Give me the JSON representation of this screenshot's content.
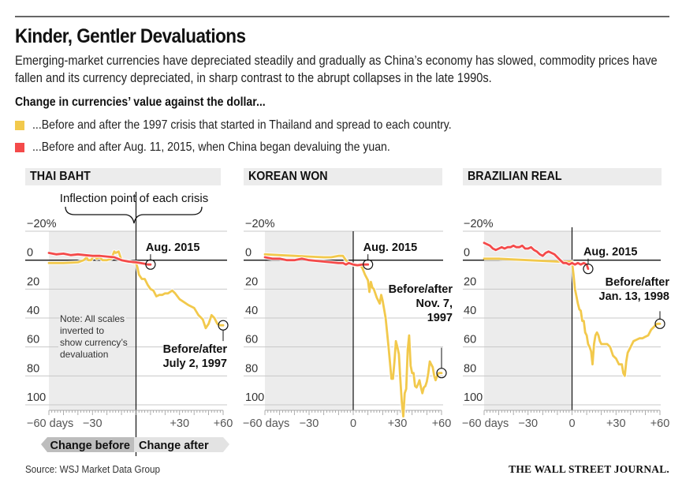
{
  "header": {
    "title": "Kinder, Gentler Devaluations",
    "subtitle": "Emerging-market currencies have depreciated steadily and gradually as China’s economy has slowed, commodity prices have fallen and its currency depreciated, in sharp contrast to the abrupt collapses in the late 1990s.",
    "lead": "Change in currencies’ value against the dollar..."
  },
  "legend": [
    {
      "label": "...Before and after the 1997 crisis that started in Thailand and spread to each country.",
      "color": "#f2c94c"
    },
    {
      "label": "...Before and after Aug. 11, 2015, when China began devaluing the yuan.",
      "color": "#f44a4a"
    }
  ],
  "colors": {
    "series_1997": "#f2c94c",
    "series_2015": "#f44a4a",
    "shade": "#ececec",
    "grid": "#c8c8c8",
    "axis": "#111111"
  },
  "annotations": {
    "inflection": "Inflection point of each crisis",
    "note_lines": [
      "Note: All scales",
      "inverted to",
      "show currency’s",
      "devaluation"
    ],
    "before_label": "Change before",
    "after_label": "Change after"
  },
  "footer": {
    "source": "Source: WSJ Market Data Group",
    "brand": "THE WALL STREET JOURNAL."
  },
  "chart_data": [
    {
      "type": "line",
      "title": "THAI BAHT",
      "xlabel": "days",
      "ylabel": "% change (inverted)",
      "xlim": [
        -60,
        60
      ],
      "ylim": [
        -20,
        100
      ],
      "y_inverted": true,
      "x_ticks": [
        "−60 days",
        "−30",
        "+30",
        "+60"
      ],
      "x_tick_values": [
        -60,
        -30,
        30,
        60
      ],
      "y_ticks": [
        "−20%",
        "0",
        "20",
        "40",
        "60",
        "80",
        "100"
      ],
      "y_tick_values": [
        -20,
        0,
        20,
        40,
        60,
        80,
        100
      ],
      "grid": true,
      "event_2015_label": "Aug. 2015",
      "event_1997_label": [
        "Before/after",
        "July 2, 1997"
      ],
      "series": [
        {
          "name": "1997 crisis",
          "color": "#f2c94c",
          "x": [
            -60,
            -50,
            -40,
            -36,
            -34,
            -33,
            -31,
            -29,
            -27,
            -25,
            -23,
            -20,
            -17,
            -15,
            -14,
            -12,
            -10,
            -7,
            -4,
            -2,
            0,
            1,
            2,
            4,
            6,
            8,
            10,
            12,
            14,
            16,
            18,
            20,
            22,
            25,
            27,
            30,
            33,
            36,
            40,
            43,
            46,
            48,
            50,
            52,
            54,
            56,
            58,
            60
          ],
          "y": [
            2,
            2,
            1.5,
            0,
            -2,
            0,
            0,
            -3,
            -1,
            -2,
            0,
            0,
            -1,
            -6,
            -5,
            -6,
            0,
            1,
            1,
            2,
            2,
            5,
            10,
            13,
            13,
            17,
            20,
            21,
            25,
            24,
            24,
            23,
            23,
            21,
            23,
            27,
            29,
            31,
            33,
            38,
            41,
            47,
            44,
            38,
            40,
            44,
            45,
            45
          ]
        },
        {
          "name": "Aug. 2015",
          "color": "#f44a4a",
          "x": [
            -60,
            -55,
            -50,
            -45,
            -40,
            -35,
            -30,
            -25,
            -20,
            -15,
            -10,
            -5,
            0,
            3,
            6,
            8,
            10
          ],
          "y": [
            -5,
            -4,
            -4.5,
            -3.5,
            -4,
            -3.5,
            -3,
            -3,
            -2.5,
            -2,
            0,
            1,
            1.5,
            2,
            2.5,
            3,
            3
          ]
        }
      ]
    },
    {
      "type": "line",
      "title": "KOREAN WON",
      "xlabel": "days",
      "ylabel": "% change (inverted)",
      "xlim": [
        -60,
        60
      ],
      "ylim": [
        -20,
        100
      ],
      "y_inverted": true,
      "x_ticks": [
        "−60 days",
        "−30",
        "0",
        "+30",
        "+60"
      ],
      "x_tick_values": [
        -60,
        -30,
        0,
        30,
        60
      ],
      "y_ticks": [
        "−20%",
        "0",
        "20",
        "40",
        "60",
        "80",
        "100"
      ],
      "y_tick_values": [
        -20,
        0,
        20,
        40,
        60,
        80,
        100
      ],
      "grid": true,
      "event_2015_label": "Aug. 2015",
      "event_1997_label": [
        "Before/after",
        "Nov. 7,",
        "1997"
      ],
      "series": [
        {
          "name": "1997 crisis",
          "color": "#f2c94c",
          "x": [
            -60,
            -50,
            -40,
            -30,
            -20,
            -15,
            -10,
            -7,
            -5,
            -3,
            0,
            2,
            4,
            6,
            8,
            10,
            11,
            12,
            13,
            14,
            16,
            18,
            19,
            20,
            22,
            24,
            26,
            27,
            28,
            29,
            30,
            31,
            32,
            33,
            34,
            35,
            36,
            37,
            38,
            39,
            40,
            41,
            42,
            43,
            44,
            45,
            46,
            47,
            48,
            49,
            50,
            51,
            52,
            53,
            54,
            55,
            56,
            57,
            58,
            60
          ],
          "y": [
            -4,
            -3.5,
            -3,
            -2.5,
            -2,
            -2,
            -3,
            -3,
            0,
            2,
            3,
            4,
            3,
            5,
            10,
            14,
            22,
            15,
            19,
            20,
            26,
            30,
            24,
            28,
            40,
            60,
            82,
            82,
            70,
            56,
            60,
            65,
            82,
            98,
            108,
            92,
            89,
            62,
            52,
            73,
            78,
            78,
            87,
            88,
            86,
            83,
            88,
            92,
            88,
            87,
            84,
            78,
            70,
            72,
            74,
            80,
            83,
            80,
            78,
            78
          ]
        },
        {
          "name": "Aug. 2015",
          "color": "#f44a4a",
          "x": [
            -60,
            -55,
            -50,
            -45,
            -40,
            -35,
            -30,
            -25,
            -20,
            -15,
            -10,
            -7,
            -5,
            -3,
            0,
            3,
            6,
            8,
            10
          ],
          "y": [
            -2,
            -1,
            -1,
            0,
            0,
            -1,
            0,
            0.5,
            1,
            1.5,
            2,
            2,
            3,
            2,
            3,
            3.5,
            3,
            3,
            3
          ]
        }
      ]
    },
    {
      "type": "line",
      "title": "BRAZILIAN REAL",
      "xlabel": "days",
      "ylabel": "% change (inverted)",
      "xlim": [
        -60,
        60
      ],
      "ylim": [
        -20,
        100
      ],
      "y_inverted": true,
      "x_ticks": [
        "−60 days",
        "−30",
        "0",
        "+30",
        "+60"
      ],
      "x_tick_values": [
        -60,
        -30,
        0,
        30,
        60
      ],
      "y_ticks": [
        "−20%",
        "0",
        "20",
        "40",
        "60",
        "80",
        "100"
      ],
      "y_tick_values": [
        -20,
        0,
        20,
        40,
        60,
        80,
        100
      ],
      "grid": true,
      "event_2015_label": "Aug. 2015",
      "event_1997_label": [
        "Before/after",
        "Jan. 13, 1998"
      ],
      "series": [
        {
          "name": "1997 crisis",
          "color": "#f2c94c",
          "x": [
            -60,
            -50,
            -40,
            -30,
            -20,
            -10,
            -3,
            0,
            1,
            2,
            3,
            4,
            5,
            6,
            7,
            8,
            9,
            10,
            11,
            12,
            13,
            14,
            15,
            16,
            17,
            18,
            19,
            20,
            22,
            24,
            26,
            28,
            30,
            32,
            34,
            35,
            36,
            37,
            38,
            39,
            40,
            42,
            44,
            46,
            48,
            50,
            52,
            54,
            56,
            58,
            60
          ],
          "y": [
            -1,
            -1,
            -0.5,
            0,
            0.5,
            1,
            1,
            1,
            10,
            20,
            25,
            30,
            34,
            35,
            42,
            42,
            50,
            52,
            58,
            60,
            63,
            72,
            58,
            52,
            50,
            52,
            56,
            58,
            58,
            58,
            60,
            66,
            68,
            72,
            72,
            78,
            80,
            70,
            64,
            62,
            60,
            56,
            55,
            54,
            54,
            53,
            52,
            48,
            46,
            44,
            44
          ]
        },
        {
          "name": "Aug. 2015",
          "color": "#f44a4a",
          "x": [
            -60,
            -58,
            -56,
            -54,
            -52,
            -50,
            -48,
            -46,
            -44,
            -42,
            -40,
            -38,
            -36,
            -34,
            -32,
            -30,
            -28,
            -26,
            -24,
            -22,
            -20,
            -18,
            -16,
            -14,
            -12,
            -10,
            -8,
            -6,
            -4,
            -2,
            0,
            2,
            4,
            6,
            8,
            10,
            11
          ],
          "y": [
            -12,
            -11,
            -10,
            -8,
            -7,
            -8,
            -9,
            -8,
            -9,
            -9,
            -10,
            -9,
            -9,
            -10,
            -8,
            -8,
            -9,
            -7,
            -6,
            -4,
            -3,
            -5,
            -6,
            -5,
            -4,
            -2,
            0,
            2,
            2,
            3,
            2,
            3,
            2,
            3,
            2,
            3,
            6
          ]
        }
      ]
    }
  ]
}
